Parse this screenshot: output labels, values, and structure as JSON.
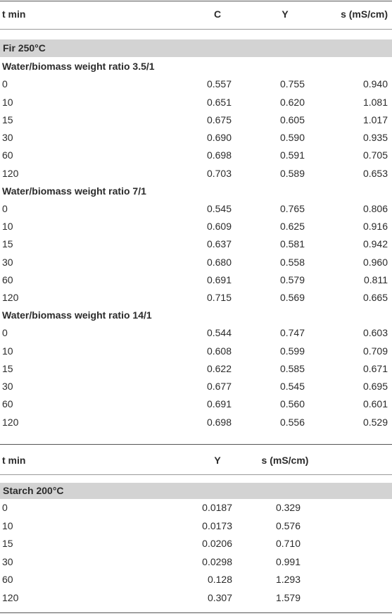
{
  "table1": {
    "header": [
      "t min",
      "C",
      "Y",
      "s (mS/cm)"
    ],
    "section": "Fir 250°C",
    "groups": [
      {
        "title": "Water/biomass weight ratio 3.5/1",
        "rows": [
          [
            "0",
            "0.557",
            "0.755",
            "0.940"
          ],
          [
            "10",
            "0.651",
            "0.620",
            "1.081"
          ],
          [
            "15",
            "0.675",
            "0.605",
            "1.017"
          ],
          [
            "30",
            "0.690",
            "0.590",
            "0.935"
          ],
          [
            "60",
            "0.698",
            "0.591",
            "0.705"
          ],
          [
            "120",
            "0.703",
            "0.589",
            "0.653"
          ]
        ]
      },
      {
        "title": "Water/biomass weight ratio 7/1",
        "rows": [
          [
            "0",
            "0.545",
            "0.765",
            "0.806"
          ],
          [
            "10",
            "0.609",
            "0.625",
            "0.916"
          ],
          [
            "15",
            "0.637",
            "0.581",
            "0.942"
          ],
          [
            "30",
            "0.680",
            "0.558",
            "0.960"
          ],
          [
            "60",
            "0.691",
            "0.579",
            "0.811"
          ],
          [
            "120",
            "0.715",
            "0.569",
            "0.665"
          ]
        ]
      },
      {
        "title": "Water/biomass weight ratio 14/1",
        "rows": [
          [
            "0",
            "0.544",
            "0.747",
            "0.603"
          ],
          [
            "10",
            "0.608",
            "0.599",
            "0.709"
          ],
          [
            "15",
            "0.622",
            "0.585",
            "0.671"
          ],
          [
            "30",
            "0.677",
            "0.545",
            "0.695"
          ],
          [
            "60",
            "0.691",
            "0.560",
            "0.601"
          ],
          [
            "120",
            "0.698",
            "0.556",
            "0.529"
          ]
        ]
      }
    ]
  },
  "table2": {
    "header": [
      "t min",
      "Y",
      "s (mS/cm)"
    ],
    "section": "Starch 200°C",
    "rows": [
      [
        "0",
        "0.0187",
        "0.329"
      ],
      [
        "10",
        "0.0173",
        "0.576"
      ],
      [
        "15",
        "0.0206",
        "0.710"
      ],
      [
        "30",
        "0.0298",
        "0.991"
      ],
      [
        "60",
        "0.128",
        "1.293"
      ],
      [
        "120",
        "0.307",
        "1.579"
      ]
    ]
  }
}
